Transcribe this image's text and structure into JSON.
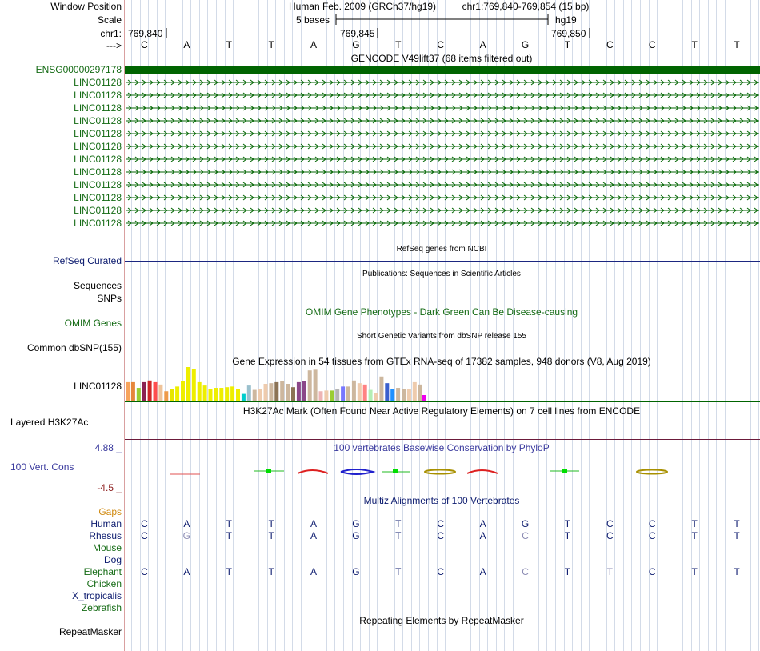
{
  "labels": {
    "window_position": "Window Position",
    "scale": "Scale",
    "chrom": "chr1:",
    "strand": "--->",
    "gencode_top": "ENSG00000297178",
    "linc_label": "LINC01128",
    "refseq": "RefSeq Curated",
    "sequences": "Sequences",
    "snps": "SNPs",
    "omim": "OMIM Genes",
    "dbsnp": "Common dbSNP(155)",
    "gtex_gene": "LINC01128",
    "h3k27ac": "Layered H3K27Ac",
    "cons_max": "4.88 _",
    "cons_name": "100 Vert. Cons",
    "cons_min": "-4.5 _",
    "gaps": "Gaps",
    "repeatmasker": "RepeatMasker"
  },
  "header": {
    "assembly": "Human Feb. 2009 (GRCh37/hg19)",
    "position": "chr1:769,840-769,854 (15 bp)",
    "scale_text": "5 bases",
    "scale_db": "hg19",
    "coord_1": "769,840",
    "coord_2": "769,845",
    "coord_3": "769,850"
  },
  "sequence": [
    "C",
    "A",
    "T",
    "T",
    "A",
    "G",
    "T",
    "C",
    "A",
    "G",
    "T",
    "C",
    "C",
    "T",
    "T"
  ],
  "track_titles": {
    "gencode": "GENCODE V49lift37 (68 items filtered out)",
    "refseq": "RefSeq genes from NCBI",
    "publications": "Publications: Sequences in Scientific Articles",
    "omim": "OMIM Gene Phenotypes - Dark Green Can Be Disease-causing",
    "dbsnp": "Short Genetic Variants from dbSNP release 155",
    "gtex": "Gene Expression in 54 tissues from GTEx RNA-seq of 17382 samples, 948 donors (V8, Aug 2019)",
    "h3k27ac": "H3K27Ac Mark (Often Found Near Active Regulatory Elements) on 7 cell lines from ENCODE",
    "phylop": "100 vertebrates Basewise Conservation by PhyloP",
    "multiz": "Multiz Alignments of 100 Vertebrates",
    "repeatmasker": "Repeating Elements by RepeatMasker"
  },
  "linc_row_count": 12,
  "species": [
    {
      "name": "Human",
      "color": "#0b1a6e",
      "bases": [
        "C",
        "A",
        "T",
        "T",
        "A",
        "G",
        "T",
        "C",
        "A",
        "G",
        "T",
        "C",
        "C",
        "T",
        "T"
      ],
      "dim": []
    },
    {
      "name": "Rhesus",
      "color": "#0b1a6e",
      "bases": [
        "C",
        "G",
        "T",
        "T",
        "A",
        "G",
        "T",
        "C",
        "A",
        "C",
        "T",
        "C",
        "C",
        "T",
        "T"
      ],
      "dim": [
        1,
        9
      ]
    },
    {
      "name": "Mouse",
      "color": "#156b15",
      "bases": [],
      "dim": []
    },
    {
      "name": "Dog",
      "color": "#0b1a6e",
      "bases": [],
      "dim": []
    },
    {
      "name": "Elephant",
      "color": "#156b15",
      "bases": [
        "C",
        "A",
        "T",
        "T",
        "A",
        "G",
        "T",
        "C",
        "A",
        "C",
        "T",
        "T",
        "C",
        "T",
        "T"
      ],
      "dim": [
        9,
        11
      ]
    },
    {
      "name": "Chicken",
      "color": "#156b15",
      "bases": [],
      "dim": []
    },
    {
      "name": "X_tropicalis",
      "color": "#0b1a6e",
      "bases": [],
      "dim": []
    },
    {
      "name": "Zebrafish",
      "color": "#156b15",
      "bases": [],
      "dim": []
    }
  ],
  "gtex_levels": [
    0.55,
    0.55,
    0.38,
    0.55,
    0.6,
    0.55,
    0.48,
    0.28,
    0.35,
    0.42,
    0.58,
    1.0,
    0.95,
    0.55,
    0.45,
    0.35,
    0.38,
    0.38,
    0.4,
    0.42,
    0.35,
    0.2,
    0.45,
    0.32,
    0.35,
    0.5,
    0.52,
    0.55,
    0.58,
    0.5,
    0.4,
    0.55,
    0.58,
    0.9,
    0.92,
    0.28,
    0.3,
    0.3,
    0.35,
    0.42,
    0.42,
    0.6,
    0.52,
    0.48,
    0.32,
    0.22,
    0.72,
    0.52,
    0.35,
    0.38,
    0.35,
    0.35,
    0.55,
    0.48
  ],
  "gtex_colors": [
    "#f7a35c",
    "#e6863b",
    "#9acd32",
    "#8b2252",
    "#cd2626",
    "#ff4d4d",
    "#eec39a",
    "#ee9a49",
    "#e6e600",
    "#eeee00",
    "#eeee00",
    "#eeee00",
    "#eeee00",
    "#eeee00",
    "#eeee00",
    "#eeee00",
    "#eeee00",
    "#eeee00",
    "#eeee00",
    "#eeee00",
    "#eeee00",
    "#00cdcd",
    "#9ac0cd",
    "#cdb79e",
    "#eecbad",
    "#eecbad",
    "#cdb79e",
    "#8b7355",
    "#cdb79e",
    "#cdb79e",
    "#8b7355",
    "#8b4789",
    "#8b4789",
    "#cdb79e",
    "#cdb79e",
    "#eeb4b4",
    "#eecbad",
    "#9acd32",
    "#b4b4b4",
    "#7777ff",
    "#cdb79e",
    "#cdb79e",
    "#eecbad",
    "#ff8282",
    "#b4eeb4",
    "#eecbad",
    "#cdb79e",
    "#3a5fcd",
    "#1e90ff",
    "#cdb79e",
    "#cdb79e",
    "#eecbad",
    "#eecbad",
    "#cdb79e"
  ]
}
